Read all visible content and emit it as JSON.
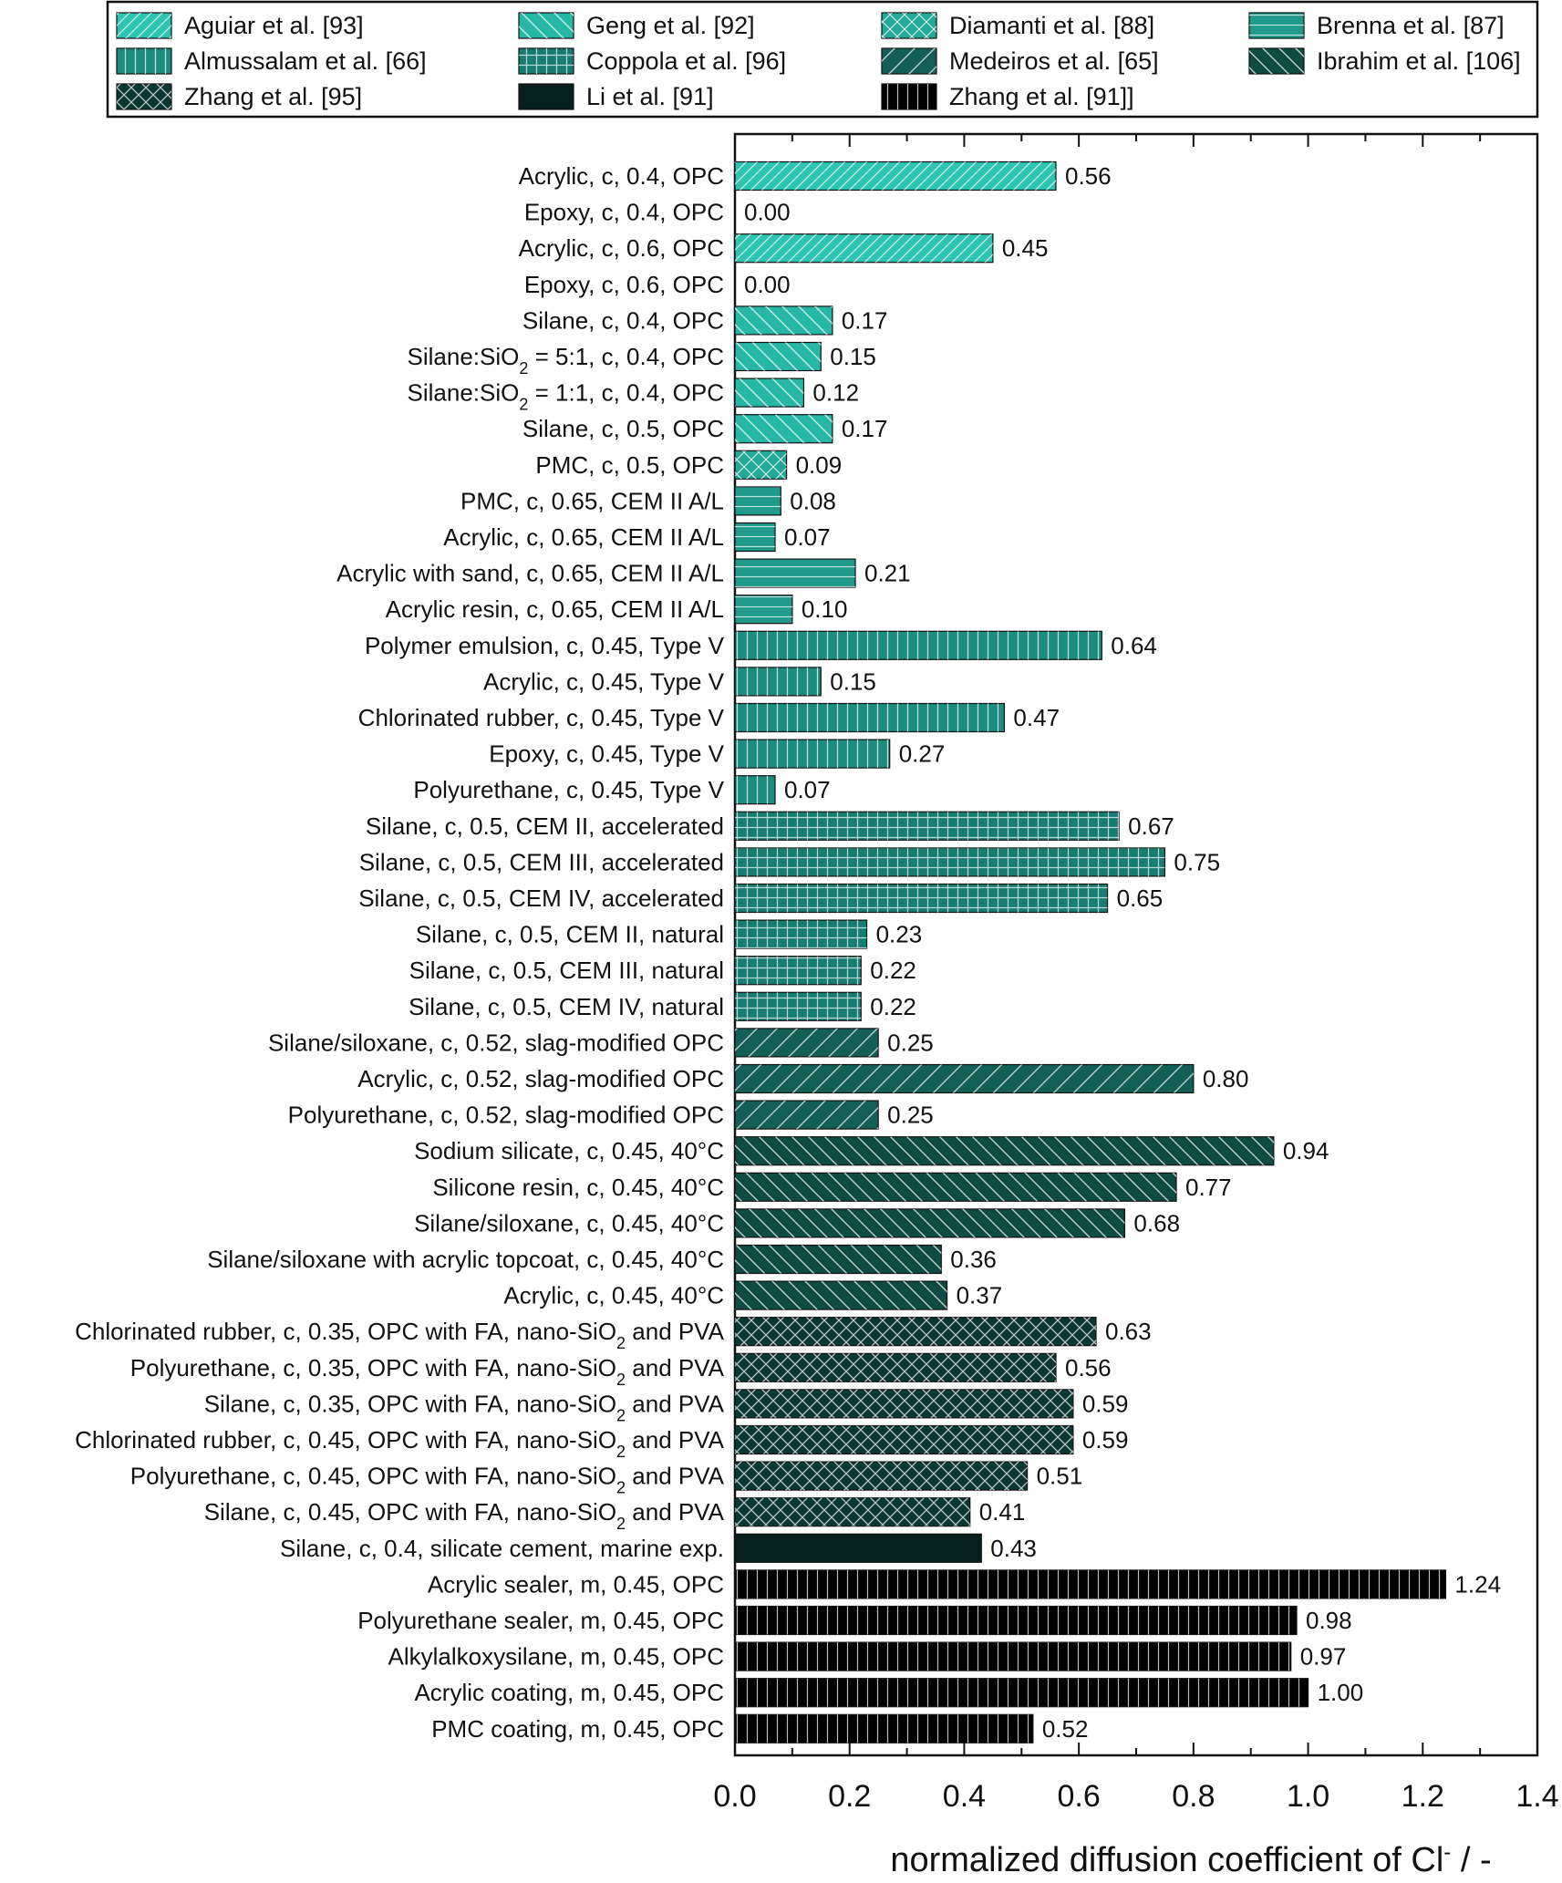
{
  "chart_data": {
    "type": "bar",
    "orientation": "horizontal",
    "xlabel": "normalized diffusion coefficient of Cl",
    "xlabel_sup": "-",
    "xlabel_suffix": " / -",
    "xlim": [
      0.0,
      1.4
    ],
    "x_ticks": [
      "0.0",
      "0.2",
      "0.4",
      "0.6",
      "0.8",
      "1.0",
      "1.2",
      "1.4"
    ],
    "legend_position": "top",
    "series": [
      {
        "name": "Aguiar et al. [93]",
        "color": "#2dc4b2",
        "pattern": "diag-up-fine",
        "categories": [
          {
            "label": "Acrylic, c, 0.4, OPC",
            "value": 0.56,
            "value_label": "0.56"
          },
          {
            "label": "Epoxy, c, 0.4, OPC",
            "value": 0.0,
            "value_label": "0.00"
          },
          {
            "label": "Acrylic, c, 0.6, OPC",
            "value": 0.45,
            "value_label": "0.45"
          },
          {
            "label": "Epoxy, c, 0.6, OPC",
            "value": 0.0,
            "value_label": "0.00"
          }
        ]
      },
      {
        "name": "Geng et al. [92]",
        "color": "#27b7a6",
        "pattern": "diag-down",
        "categories": [
          {
            "label": "Silane, c, 0.4, OPC",
            "value": 0.17,
            "value_label": "0.17"
          },
          {
            "label": "Silane:SiO2 = 5:1, c, 0.4, OPC",
            "label_pre": "Silane:SiO",
            "label_sub": "2",
            "label_post": " = 5:1, c, 0.4, OPC",
            "value": 0.15,
            "value_label": "0.15"
          },
          {
            "label": "Silane:SiO2 = 1:1, c, 0.4, OPC",
            "label_pre": "Silane:SiO",
            "label_sub": "2",
            "label_post": " = 1:1, c, 0.4, OPC",
            "value": 0.12,
            "value_label": "0.12"
          },
          {
            "label": "Silane, c, 0.5, OPC",
            "value": 0.17,
            "value_label": "0.17"
          }
        ]
      },
      {
        "name": "Diamanti et al. [88]",
        "color": "#22a897",
        "pattern": "cross-diag",
        "categories": [
          {
            "label": "PMC, c, 0.5, OPC",
            "value": 0.09,
            "value_label": "0.09"
          }
        ]
      },
      {
        "name": "Brenna et al. [87]",
        "color": "#1f9a8b",
        "pattern": "horizontal",
        "categories": [
          {
            "label": "PMC, c, 0.65, CEM II A/L",
            "value": 0.08,
            "value_label": "0.08"
          },
          {
            "label": "Acrylic, c, 0.65, CEM II A/L",
            "value": 0.07,
            "value_label": "0.07"
          },
          {
            "label": "Acrylic with sand, c, 0.65, CEM II A/L",
            "value": 0.21,
            "value_label": "0.21"
          },
          {
            "label": "Acrylic resin, c, 0.65, CEM II A/L",
            "value": 0.1,
            "value_label": "0.10"
          }
        ]
      },
      {
        "name": "Almussalam et al. [66]",
        "color": "#1b8c7e",
        "pattern": "vertical",
        "categories": [
          {
            "label": "Polymer emulsion, c, 0.45, Type V",
            "value": 0.64,
            "value_label": "0.64"
          },
          {
            "label": "Acrylic, c, 0.45, Type V",
            "value": 0.15,
            "value_label": "0.15"
          },
          {
            "label": "Chlorinated rubber, c, 0.45, Type V",
            "value": 0.47,
            "value_label": "0.47"
          },
          {
            "label": "Epoxy, c, 0.45, Type V",
            "value": 0.27,
            "value_label": "0.27"
          },
          {
            "label": "Polyurethane, c, 0.45, Type V",
            "value": 0.07,
            "value_label": "0.07"
          }
        ]
      },
      {
        "name": "Coppola et al. [96]",
        "color": "#187d71",
        "pattern": "grid",
        "categories": [
          {
            "label": "Silane, c, 0.5, CEM II, accelerated",
            "value": 0.67,
            "value_label": "0.67"
          },
          {
            "label": "Silane, c, 0.5, CEM III, accelerated",
            "value": 0.75,
            "value_label": "0.75"
          },
          {
            "label": "Silane, c, 0.5, CEM IV, accelerated",
            "value": 0.65,
            "value_label": "0.65"
          },
          {
            "label": "Silane, c, 0.5, CEM II, natural",
            "value": 0.23,
            "value_label": "0.23"
          },
          {
            "label": "Silane, c, 0.5, CEM III, natural",
            "value": 0.22,
            "value_label": "0.22"
          },
          {
            "label": "Silane, c, 0.5, CEM IV, natural",
            "value": 0.22,
            "value_label": "0.22"
          }
        ]
      },
      {
        "name": "Medeiros et al. [65]",
        "color": "#135f55",
        "pattern": "diag-up",
        "categories": [
          {
            "label": "Silane/siloxane, c, 0.52, slag-modified OPC",
            "value": 0.25,
            "value_label": "0.25"
          },
          {
            "label": "Acrylic, c, 0.52, slag-modified OPC",
            "value": 0.8,
            "value_label": "0.80"
          },
          {
            "label": "Polyurethane, c, 0.52, slag-modified OPC",
            "value": 0.25,
            "value_label": "0.25"
          }
        ]
      },
      {
        "name": "Ibrahim et al. [106]",
        "color": "#0f4a43",
        "pattern": "diag-down",
        "categories": [
          {
            "label": "Sodium silicate, c, 0.45, 40°C",
            "value": 0.94,
            "value_label": "0.94"
          },
          {
            "label": "Silicone resin, c, 0.45, 40°C",
            "value": 0.77,
            "value_label": "0.77"
          },
          {
            "label": "Silane/siloxane, c, 0.45, 40°C",
            "value": 0.68,
            "value_label": "0.68"
          },
          {
            "label": "Silane/siloxane with acrylic topcoat, c, 0.45, 40°C",
            "value": 0.36,
            "value_label": "0.36"
          },
          {
            "label": "Acrylic, c, 0.45, 40°C",
            "value": 0.37,
            "value_label": "0.37"
          }
        ]
      },
      {
        "name": "Zhang et al. [95]",
        "color": "#0b3833",
        "pattern": "cross-diag",
        "categories": [
          {
            "label": "Chlorinated rubber, c, 0.35, OPC with FA, nano-SiO2 and PVA",
            "label_pre": "Chlorinated rubber, c, 0.35, OPC with FA, nano-SiO",
            "label_sub": "2",
            "label_post": " and PVA",
            "value": 0.63,
            "value_label": "0.63"
          },
          {
            "label": "Polyurethane, c, 0.35, OPC with FA, nano-SiO2 and PVA",
            "label_pre": "Polyurethane, c, 0.35, OPC with FA, nano-SiO",
            "label_sub": "2",
            "label_post": " and PVA",
            "value": 0.56,
            "value_label": "0.56"
          },
          {
            "label": "Silane, c, 0.35, OPC with FA, nano-SiO2 and PVA",
            "label_pre": "Silane, c, 0.35, OPC with FA, nano-SiO",
            "label_sub": "2",
            "label_post": " and PVA",
            "value": 0.59,
            "value_label": "0.59"
          },
          {
            "label": "Chlorinated rubber, c, 0.45, OPC with FA, nano-SiO2 and PVA",
            "label_pre": "Chlorinated rubber, c, 0.45, OPC with FA, nano-SiO",
            "label_sub": "2",
            "label_post": " and PVA",
            "value": 0.59,
            "value_label": "0.59"
          },
          {
            "label": "Polyurethane, c, 0.45, OPC with FA, nano-SiO2 and PVA",
            "label_pre": "Polyurethane, c, 0.45, OPC with FA, nano-SiO",
            "label_sub": "2",
            "label_post": " and PVA",
            "value": 0.51,
            "value_label": "0.51"
          },
          {
            "label": "Silane, c, 0.45, OPC with FA, nano-SiO2 and PVA",
            "label_pre": "Silane, c, 0.45, OPC with FA, nano-SiO",
            "label_sub": "2",
            "label_post": " and PVA",
            "value": 0.41,
            "value_label": "0.41"
          }
        ]
      },
      {
        "name": "Li et al. [91]",
        "color": "#06201d",
        "pattern": "none",
        "categories": [
          {
            "label": "Silane, c, 0.4, silicate cement, marine exp.",
            "value": 0.43,
            "value_label": "0.43"
          }
        ]
      },
      {
        "name": "Zhang et al. [91]]",
        "color": "#000000",
        "pattern": "vertical",
        "categories": [
          {
            "label": "Acrylic sealer, m, 0.45, OPC",
            "value": 1.24,
            "value_label": "1.24"
          },
          {
            "label": "Polyurethane sealer, m, 0.45, OPC",
            "value": 0.98,
            "value_label": "0.98"
          },
          {
            "label": "Alkylalkoxysilane, m, 0.45, OPC",
            "value": 0.97,
            "value_label": "0.97"
          },
          {
            "label": "Acrylic coating, m, 0.45, OPC",
            "value": 1.0,
            "value_label": "1.00"
          },
          {
            "label": "PMC coating, m, 0.45, OPC",
            "value": 0.52,
            "value_label": "0.52"
          }
        ]
      }
    ]
  }
}
